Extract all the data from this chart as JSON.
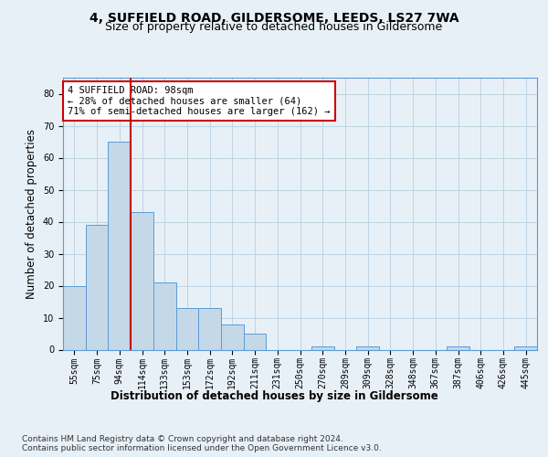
{
  "title_line1": "4, SUFFIELD ROAD, GILDERSOME, LEEDS, LS27 7WA",
  "title_line2": "Size of property relative to detached houses in Gildersome",
  "xlabel": "Distribution of detached houses by size in Gildersome",
  "ylabel": "Number of detached properties",
  "categories": [
    "55sqm",
    "75sqm",
    "94sqm",
    "114sqm",
    "133sqm",
    "153sqm",
    "172sqm",
    "192sqm",
    "211sqm",
    "231sqm",
    "250sqm",
    "270sqm",
    "289sqm",
    "309sqm",
    "328sqm",
    "348sqm",
    "367sqm",
    "387sqm",
    "406sqm",
    "426sqm",
    "445sqm"
  ],
  "values": [
    20,
    39,
    65,
    43,
    21,
    13,
    13,
    8,
    5,
    0,
    0,
    1,
    0,
    1,
    0,
    0,
    0,
    1,
    0,
    0,
    1
  ],
  "bar_color": "#c5d8e8",
  "bar_edge_color": "#5b9bd5",
  "grid_color": "#b8cfe0",
  "background_color": "#e8f0f7",
  "vline_color": "#cc0000",
  "annotation_text": "4 SUFFIELD ROAD: 98sqm\n← 28% of detached houses are smaller (64)\n71% of semi-detached houses are larger (162) →",
  "annotation_box_color": "#ffffff",
  "annotation_box_edge": "#cc0000",
  "ylim": [
    0,
    85
  ],
  "yticks": [
    0,
    10,
    20,
    30,
    40,
    50,
    60,
    70,
    80
  ],
  "footnote": "Contains HM Land Registry data © Crown copyright and database right 2024.\nContains public sector information licensed under the Open Government Licence v3.0.",
  "title_fontsize": 10,
  "subtitle_fontsize": 9,
  "axis_label_fontsize": 8.5,
  "tick_fontsize": 7,
  "footnote_fontsize": 6.5,
  "annotation_fontsize": 7.5
}
